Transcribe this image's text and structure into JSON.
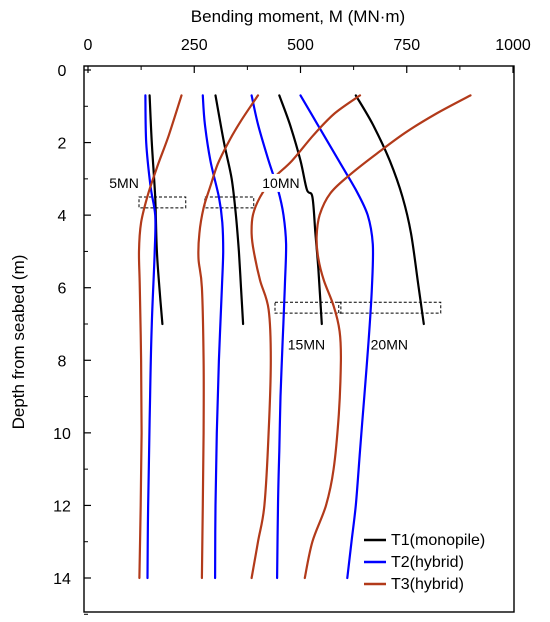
{
  "chart_data": {
    "type": "line",
    "title": "",
    "xlabel": "Bending moment, M (MN·m)",
    "ylabel": "Depth from seabed (m)",
    "x_axis_position": "top",
    "xlim": [
      0,
      1000
    ],
    "ylim": [
      0,
      15
    ],
    "y_inverted": true,
    "xticks": [
      0,
      250,
      500,
      750,
      1000
    ],
    "yticks": [
      0,
      2,
      4,
      6,
      8,
      10,
      12,
      14
    ],
    "grid": false,
    "legend_position": "bottom-right",
    "series": [
      {
        "name": "T1(monopile)",
        "color": "#000000",
        "load": "5MN",
        "points": [
          [
            145,
            0.7
          ],
          [
            150,
            2
          ],
          [
            158,
            3.5
          ],
          [
            162,
            5
          ],
          [
            168,
            6
          ],
          [
            175,
            7
          ]
        ]
      },
      {
        "name": "T1(monopile)",
        "color": "#000000",
        "load": "10MN",
        "points": [
          [
            300,
            0.7
          ],
          [
            320,
            2
          ],
          [
            338,
            3
          ],
          [
            348,
            4
          ],
          [
            355,
            5
          ],
          [
            360,
            6
          ],
          [
            365,
            7
          ]
        ]
      },
      {
        "name": "T1(monopile)",
        "color": "#000000",
        "load": "15MN",
        "points": [
          [
            450,
            0.7
          ],
          [
            475,
            1.5
          ],
          [
            500,
            2.5
          ],
          [
            515,
            3.3
          ],
          [
            528,
            3.5
          ],
          [
            535,
            4.5
          ],
          [
            542,
            5.5
          ],
          [
            550,
            7
          ]
        ]
      },
      {
        "name": "T1(monopile)",
        "color": "#000000",
        "load": "20MN",
        "points": [
          [
            630,
            0.7
          ],
          [
            670,
            1.5
          ],
          [
            710,
            2.5
          ],
          [
            740,
            3.5
          ],
          [
            760,
            4.5
          ],
          [
            778,
            6
          ],
          [
            790,
            7
          ]
        ]
      },
      {
        "name": "T2(hybrid)",
        "color": "#0000ff",
        "load": "5MN",
        "points": [
          [
            135,
            0.7
          ],
          [
            137,
            2
          ],
          [
            147,
            3.2
          ],
          [
            158,
            4
          ],
          [
            157,
            5
          ],
          [
            150,
            7
          ],
          [
            146,
            9
          ],
          [
            143,
            11
          ],
          [
            141,
            12.5
          ],
          [
            140,
            14
          ]
        ]
      },
      {
        "name": "T2(hybrid)",
        "color": "#0000ff",
        "load": "10MN",
        "points": [
          [
            270,
            0.7
          ],
          [
            275,
            1.5
          ],
          [
            288,
            2.5
          ],
          [
            308,
            3.5
          ],
          [
            316,
            4.2
          ],
          [
            318,
            5
          ],
          [
            315,
            6
          ],
          [
            308,
            8
          ],
          [
            303,
            10
          ],
          [
            300,
            12
          ],
          [
            299,
            14
          ]
        ]
      },
      {
        "name": "T2(hybrid)",
        "color": "#0000ff",
        "load": "15MN",
        "points": [
          [
            385,
            0.7
          ],
          [
            400,
            1.5
          ],
          [
            425,
            2.5
          ],
          [
            447,
            3.3
          ],
          [
            460,
            4
          ],
          [
            466,
            4.8
          ],
          [
            463,
            6
          ],
          [
            458,
            7.5
          ],
          [
            453,
            9
          ],
          [
            450,
            10.5
          ],
          [
            447,
            12
          ],
          [
            445,
            14
          ]
        ]
      },
      {
        "name": "T2(hybrid)",
        "color": "#0000ff",
        "load": "20MN",
        "points": [
          [
            500,
            0.7
          ],
          [
            540,
            1.5
          ],
          [
            590,
            2.5
          ],
          [
            630,
            3.3
          ],
          [
            658,
            4
          ],
          [
            670,
            4.8
          ],
          [
            668,
            6
          ],
          [
            660,
            7.5
          ],
          [
            650,
            9
          ],
          [
            640,
            10.5
          ],
          [
            630,
            12
          ],
          [
            620,
            13
          ],
          [
            610,
            14
          ]
        ]
      },
      {
        "name": "T3(hybrid)",
        "color": "#b23a1a",
        "load": "5MN",
        "points": [
          [
            220,
            0.7
          ],
          [
            190,
            1.8
          ],
          [
            165,
            2.6
          ],
          [
            142,
            3.4
          ],
          [
            125,
            4.2
          ],
          [
            120,
            5
          ],
          [
            122,
            6
          ],
          [
            125,
            8
          ],
          [
            126,
            10
          ],
          [
            124,
            12
          ],
          [
            121,
            14
          ]
        ]
      },
      {
        "name": "T3(hybrid)",
        "color": "#b23a1a",
        "load": "10MN",
        "points": [
          [
            400,
            0.7
          ],
          [
            360,
            1.4
          ],
          [
            330,
            2
          ],
          [
            305,
            2.6
          ],
          [
            288,
            3.2
          ],
          [
            272,
            3.8
          ],
          [
            262,
            4.5
          ],
          [
            260,
            5.2
          ],
          [
            268,
            6
          ],
          [
            272,
            8
          ],
          [
            272,
            10
          ],
          [
            270,
            12
          ],
          [
            268,
            14
          ]
        ]
      },
      {
        "name": "T3(hybrid)",
        "color": "#b23a1a",
        "load": "15MN",
        "points": [
          [
            640,
            0.7
          ],
          [
            580,
            1.2
          ],
          [
            530,
            1.8
          ],
          [
            480,
            2.5
          ],
          [
            435,
            3
          ],
          [
            405,
            3.5
          ],
          [
            388,
            4
          ],
          [
            385,
            4.5
          ],
          [
            390,
            5
          ],
          [
            405,
            5.8
          ],
          [
            425,
            6.6
          ],
          [
            430,
            8
          ],
          [
            425,
            10
          ],
          [
            415,
            12
          ],
          [
            400,
            13
          ],
          [
            385,
            14
          ]
        ]
      },
      {
        "name": "T3(hybrid)",
        "color": "#b23a1a",
        "load": "20MN",
        "points": [
          [
            900,
            0.7
          ],
          [
            820,
            1.2
          ],
          [
            750,
            1.7
          ],
          [
            680,
            2.3
          ],
          [
            615,
            2.9
          ],
          [
            570,
            3.4
          ],
          [
            545,
            4
          ],
          [
            538,
            4.6
          ],
          [
            542,
            5.2
          ],
          [
            555,
            5.8
          ],
          [
            578,
            6.5
          ],
          [
            592,
            7.2
          ],
          [
            595,
            8
          ],
          [
            590,
            9.5
          ],
          [
            578,
            11
          ],
          [
            560,
            12
          ],
          [
            528,
            13
          ],
          [
            510,
            14
          ]
        ]
      }
    ],
    "annotations": [
      {
        "text": "5MN",
        "box": {
          "x0": 120,
          "x1": 230,
          "y0": 3.5,
          "y1": 3.8
        }
      },
      {
        "text": "10MN",
        "box": {
          "x0": 275,
          "x1": 390,
          "y0": 3.5,
          "y1": 3.8
        }
      },
      {
        "text": "15MN",
        "box": {
          "x0": 440,
          "x1": 595,
          "y0": 6.4,
          "y1": 6.7
        }
      },
      {
        "text": "20MN",
        "box": {
          "x0": 590,
          "x1": 830,
          "y0": 6.4,
          "y1": 6.7
        }
      }
    ],
    "legend": [
      {
        "label": "T1(monopile)",
        "color": "#000000"
      },
      {
        "label": "T2(hybrid)",
        "color": "#0000ff"
      },
      {
        "label": "T3(hybrid)",
        "color": "#b23a1a"
      }
    ]
  }
}
